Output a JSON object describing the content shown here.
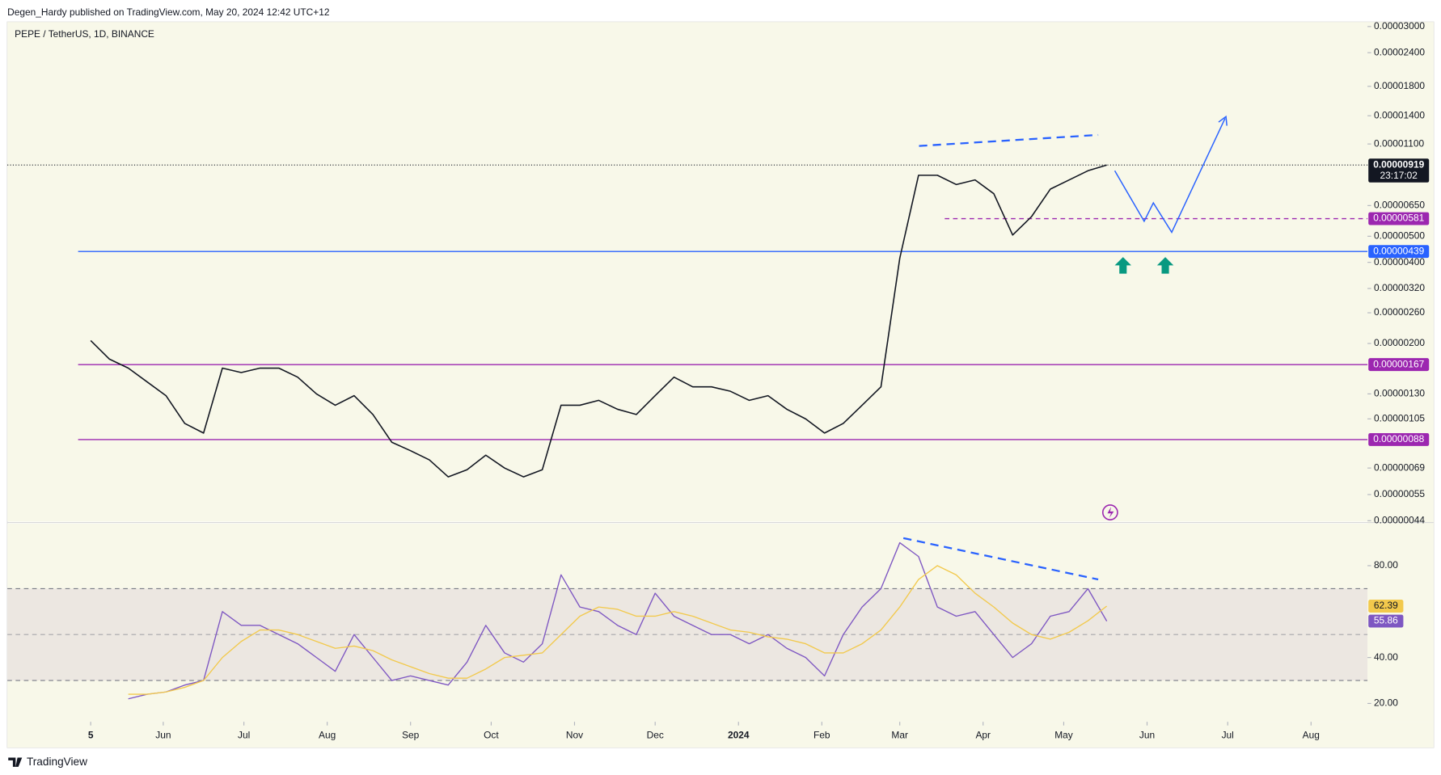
{
  "header": "Degen_Hardy published on TradingView.com, May 20, 2024 12:42 UTC+12",
  "footer": "TradingView",
  "chart_data": [
    {
      "type": "line",
      "title": "PEPE / TetherUS, 1D, BINANCE",
      "log_scale": true,
      "x": [
        "2023-05-05",
        "2023-05-12",
        "2023-05-19",
        "2023-05-26",
        "2023-06-02",
        "2023-06-09",
        "2023-06-16",
        "2023-06-23",
        "2023-06-30",
        "2023-07-07",
        "2023-07-14",
        "2023-07-21",
        "2023-07-28",
        "2023-08-04",
        "2023-08-11",
        "2023-08-18",
        "2023-08-25",
        "2023-09-01",
        "2023-09-08",
        "2023-09-15",
        "2023-09-22",
        "2023-09-29",
        "2023-10-06",
        "2023-10-13",
        "2023-10-20",
        "2023-10-27",
        "2023-11-03",
        "2023-11-10",
        "2023-11-17",
        "2023-11-24",
        "2023-12-01",
        "2023-12-08",
        "2023-12-15",
        "2023-12-22",
        "2023-12-29",
        "2024-01-05",
        "2024-01-12",
        "2024-01-19",
        "2024-01-26",
        "2024-02-02",
        "2024-02-09",
        "2024-02-16",
        "2024-02-23",
        "2024-03-01",
        "2024-03-08",
        "2024-03-15",
        "2024-03-22",
        "2024-03-29",
        "2024-04-05",
        "2024-04-12",
        "2024-04-19",
        "2024-04-26",
        "2024-05-03",
        "2024-05-10",
        "2024-05-17"
      ],
      "series": [
        {
          "color": "#131722",
          "values": [
            2.05e-06,
            1.75e-06,
            1.62e-06,
            1.44e-06,
            1.28e-06,
            1.01e-06,
            9.3e-07,
            1.62e-06,
            1.56e-06,
            1.62e-06,
            1.62e-06,
            1.5e-06,
            1.3e-06,
            1.18e-06,
            1.28e-06,
            1.09e-06,
            8.6e-07,
            8e-07,
            7.4e-07,
            6.4e-07,
            6.8e-07,
            7.7e-07,
            6.9e-07,
            6.4e-07,
            6.8e-07,
            1.18e-06,
            1.18e-06,
            1.23e-06,
            1.14e-06,
            1.09e-06,
            1.28e-06,
            1.5e-06,
            1.38e-06,
            1.38e-06,
            1.33e-06,
            1.23e-06,
            1.28e-06,
            1.14e-06,
            1.05e-06,
            9.3e-07,
            1.01e-06,
            1.18e-06,
            1.38e-06,
            4.15e-06,
            8.42e-06,
            8.42e-06,
            7.78e-06,
            8.09e-06,
            7.19e-06,
            5.05e-06,
            5.91e-06,
            7.48e-06,
            8.09e-06,
            8.75e-06,
            9.19e-06
          ]
        }
      ],
      "xlim": [
        "2023-04-04",
        "2024-08-22"
      ],
      "xticks": [
        {
          "value": "2023-05-05",
          "label": "5"
        },
        {
          "value": "2023-06-01",
          "label": "Jun"
        },
        {
          "value": "2023-07-01",
          "label": "Jul"
        },
        {
          "value": "2023-08-01",
          "label": "Aug"
        },
        {
          "value": "2023-09-01",
          "label": "Sep"
        },
        {
          "value": "2023-10-01",
          "label": "Oct"
        },
        {
          "value": "2023-11-01",
          "label": "Nov"
        },
        {
          "value": "2023-12-01",
          "label": "Dec"
        },
        {
          "value": "2024-01-01",
          "label": "2024"
        },
        {
          "value": "2024-02-01",
          "label": "Feb"
        },
        {
          "value": "2024-03-01",
          "label": "Mar"
        },
        {
          "value": "2024-04-01",
          "label": "Apr"
        },
        {
          "value": "2024-05-01",
          "label": "May"
        },
        {
          "value": "2024-06-01",
          "label": "Jun"
        },
        {
          "value": "2024-07-01",
          "label": "Jul"
        },
        {
          "value": "2024-08-01",
          "label": "Aug"
        }
      ],
      "ylim": [
        4.4e-07,
        3e-05
      ],
      "yticks": [
        {
          "value": 3e-05,
          "label": "0.00003000"
        },
        {
          "value": 2.4e-05,
          "label": "0.00002400"
        },
        {
          "value": 1.8e-05,
          "label": "0.00001800"
        },
        {
          "value": 1.4e-05,
          "label": "0.00001400"
        },
        {
          "value": 1.1e-05,
          "label": "0.00001100"
        },
        {
          "value": 6.5e-06,
          "label": "0.00000650"
        },
        {
          "value": 5e-06,
          "label": "0.00000500"
        },
        {
          "value": 4e-06,
          "label": "0.00000400"
        },
        {
          "value": 3.2e-06,
          "label": "0.00000320"
        },
        {
          "value": 2.6e-06,
          "label": "0.00000260"
        },
        {
          "value": 2e-06,
          "label": "0.00000200"
        },
        {
          "value": 1.3e-06,
          "label": "0.00000130"
        },
        {
          "value": 1.05e-06,
          "label": "0.00000105"
        },
        {
          "value": 6.9e-07,
          "label": "0.00000069"
        },
        {
          "value": 5.5e-07,
          "label": "0.00000055"
        },
        {
          "value": 4.4e-07,
          "label": "0.00000044"
        }
      ],
      "levels": [
        {
          "value": 5.81e-06,
          "label": "0.00000581",
          "color": "#9c27b0",
          "dashed": true
        },
        {
          "value": 4.39e-06,
          "label": "0.00000439",
          "color": "#2962ff",
          "dashed": false
        },
        {
          "value": 1.67e-06,
          "label": "0.00000167",
          "color": "#9c27b0",
          "dashed": false
        },
        {
          "value": 8.8e-07,
          "label": "0.00000088",
          "color": "#9c27b0",
          "dashed": false
        }
      ],
      "last_price": {
        "value": 9.19e-06,
        "label": "0.00000919"
      },
      "countdown": "23:17:02"
    },
    {
      "type": "line",
      "series": [
        {
          "color": "#7e57c2",
          "values": [
            null,
            null,
            22,
            24,
            25,
            28,
            30,
            60,
            54,
            54,
            50,
            46,
            40,
            34,
            50,
            40,
            30,
            32,
            30,
            28,
            38,
            54,
            42,
            38,
            46,
            76,
            62,
            60,
            54,
            50,
            68,
            58,
            54,
            50,
            50,
            46,
            50,
            44,
            40,
            32,
            50,
            62,
            70,
            90,
            84,
            62,
            58,
            60,
            50,
            40,
            46,
            58,
            60,
            70,
            55.86
          ]
        },
        {
          "color": "#f2c94c",
          "values": [
            null,
            null,
            24,
            24,
            25,
            27,
            30,
            40,
            47,
            52,
            52,
            50,
            47,
            44,
            45,
            43,
            39,
            36,
            33,
            31,
            31,
            35,
            40,
            41,
            42,
            50,
            58,
            62,
            61,
            58,
            58,
            60,
            58,
            55,
            52,
            51,
            49,
            48,
            46,
            42,
            42,
            46,
            52,
            62,
            74,
            80,
            76,
            68,
            62,
            55,
            50,
            48,
            51,
            56,
            62.39
          ]
        }
      ],
      "ylim": [
        12,
        98.4
      ],
      "yticks": [
        {
          "value": 80,
          "label": "80.00"
        },
        {
          "value": 40,
          "label": "40.00"
        },
        {
          "value": 20,
          "label": "20.00"
        }
      ],
      "band": [
        30,
        70
      ],
      "midline": 50
    }
  ]
}
